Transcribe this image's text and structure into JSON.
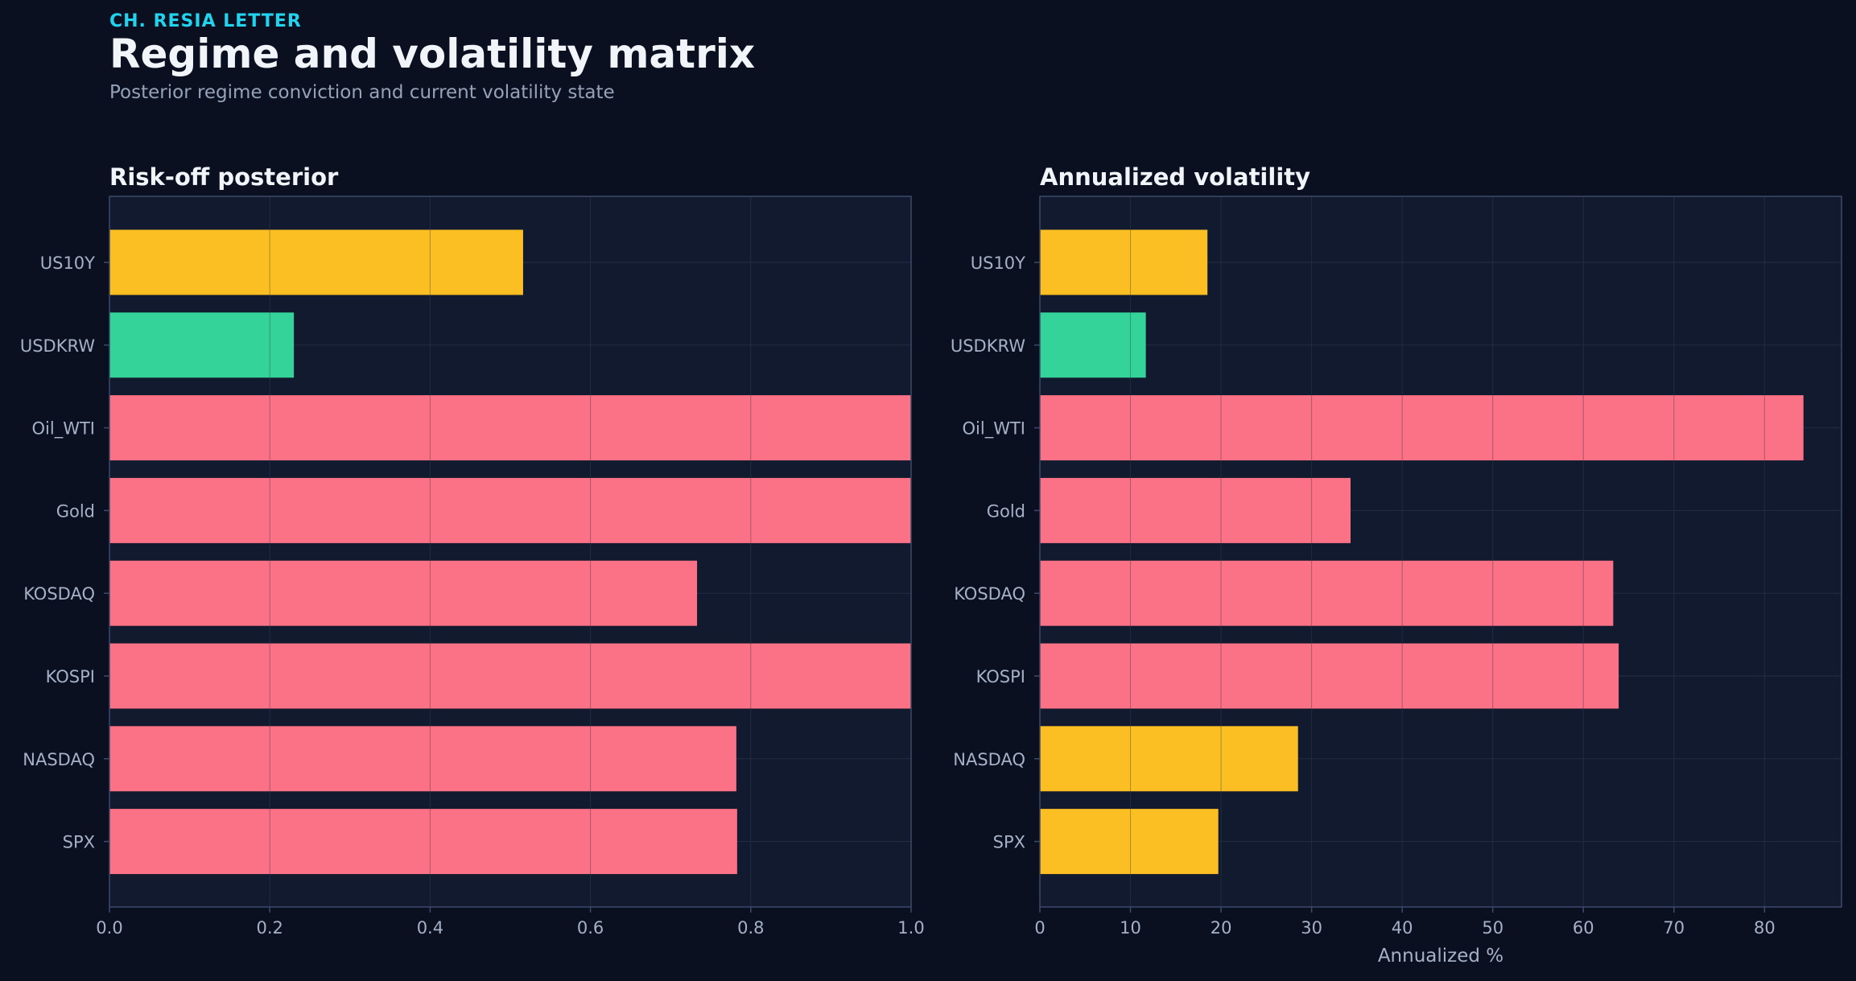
{
  "header": {
    "eyebrow": "CH. RESIA LETTER",
    "title": "Regime and volatility matrix",
    "subtitle": "Posterior regime conviction and current volatility state"
  },
  "colors": {
    "background": "#0b1020",
    "panel": "#111a2e",
    "frame": "#3b4a6b",
    "grid": "#2a3650",
    "tick_text": "#a5b1c7",
    "title_text": "#f1f5f9",
    "risk_off": "#fb7185",
    "neutral": "#fbbf24",
    "risk_on": "#34d399"
  },
  "chart_data": [
    {
      "type": "bar",
      "orientation": "horizontal",
      "title": "Risk-off posterior",
      "xlabel": "",
      "ylabel": "",
      "categories": [
        "US10Y",
        "USDKRW",
        "Oil_WTI",
        "Gold",
        "KOSDAQ",
        "KOSPI",
        "NASDAQ",
        "SPX"
      ],
      "values": [
        0.516,
        0.23,
        1.0,
        1.0,
        0.733,
        1.0,
        0.782,
        0.783
      ],
      "bar_colors": [
        "#fbbf24",
        "#34d399",
        "#fb7185",
        "#fb7185",
        "#fb7185",
        "#fb7185",
        "#fb7185",
        "#fb7185"
      ],
      "xlim": [
        0,
        1.0
      ],
      "xticks": [
        0.0,
        0.2,
        0.4,
        0.6,
        0.8,
        1.0
      ],
      "xtick_labels": [
        "0.0",
        "0.2",
        "0.4",
        "0.6",
        "0.8",
        "1.0"
      ],
      "grid": true
    },
    {
      "type": "bar",
      "orientation": "horizontal",
      "title": "Annualized volatility",
      "xlabel": "Annualized %",
      "ylabel": "",
      "categories": [
        "US10Y",
        "USDKRW",
        "Oil_WTI",
        "Gold",
        "KOSDAQ",
        "KOSPI",
        "NASDAQ",
        "SPX"
      ],
      "values": [
        18.5,
        11.7,
        84.3,
        34.3,
        63.3,
        63.9,
        28.5,
        19.7
      ],
      "bar_colors": [
        "#fbbf24",
        "#34d399",
        "#fb7185",
        "#fb7185",
        "#fb7185",
        "#fb7185",
        "#fbbf24",
        "#fbbf24"
      ],
      "xlim": [
        0,
        88.5
      ],
      "xticks": [
        0,
        10,
        20,
        30,
        40,
        50,
        60,
        70,
        80
      ],
      "xtick_labels": [
        "0",
        "10",
        "20",
        "30",
        "40",
        "50",
        "60",
        "70",
        "80"
      ],
      "grid": true
    }
  ]
}
